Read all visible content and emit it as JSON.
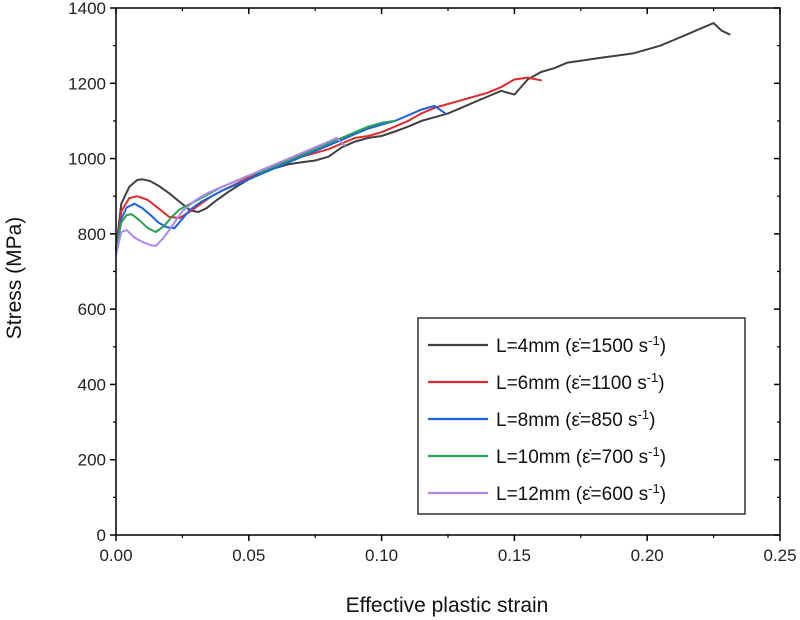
{
  "chart_data": {
    "type": "line",
    "title": "",
    "xlabel": "Effective plastic strain",
    "ylabel": "Stress (MPa)",
    "xlim": [
      0,
      0.25
    ],
    "ylim": [
      0,
      1400
    ],
    "grid": false,
    "legend_position": "bottom-right",
    "x_ticks": [
      0.0,
      0.05,
      0.1,
      0.15,
      0.2,
      0.25
    ],
    "x_tick_labels": [
      "0.00",
      "0.05",
      "0.10",
      "0.15",
      "0.20",
      "0.25"
    ],
    "y_ticks": [
      0,
      200,
      400,
      600,
      800,
      1000,
      1200,
      1400
    ],
    "y_tick_labels": [
      "0",
      "200",
      "400",
      "600",
      "800",
      "1000",
      "1200",
      "1400"
    ],
    "series": [
      {
        "name": "L=4mm",
        "legend_prefix": "L=4mm (",
        "legend_rate": "=1500 s",
        "color": "#404040",
        "x": [
          0.0,
          0.002,
          0.005,
          0.008,
          0.01,
          0.013,
          0.016,
          0.02,
          0.024,
          0.028,
          0.031,
          0.034,
          0.038,
          0.042,
          0.046,
          0.05,
          0.055,
          0.06,
          0.065,
          0.07,
          0.075,
          0.08,
          0.085,
          0.09,
          0.095,
          0.1,
          0.105,
          0.11,
          0.115,
          0.12,
          0.125,
          0.13,
          0.135,
          0.14,
          0.145,
          0.15,
          0.155,
          0.16,
          0.165,
          0.17,
          0.175,
          0.18,
          0.185,
          0.19,
          0.195,
          0.2,
          0.205,
          0.21,
          0.215,
          0.22,
          0.225,
          0.228,
          0.231
        ],
        "y": [
          760,
          880,
          925,
          943,
          945,
          940,
          928,
          908,
          885,
          862,
          858,
          868,
          890,
          910,
          928,
          945,
          965,
          975,
          985,
          990,
          995,
          1005,
          1030,
          1045,
          1055,
          1060,
          1072,
          1085,
          1100,
          1110,
          1120,
          1135,
          1150,
          1165,
          1180,
          1170,
          1210,
          1230,
          1240,
          1255,
          1260,
          1265,
          1270,
          1275,
          1280,
          1290,
          1300,
          1315,
          1330,
          1345,
          1360,
          1340,
          1330
        ]
      },
      {
        "name": "L=6mm",
        "legend_prefix": "L=6mm (",
        "legend_rate": "=1100 s",
        "color": "#e32a2a",
        "x": [
          0.0,
          0.002,
          0.005,
          0.008,
          0.012,
          0.016,
          0.02,
          0.024,
          0.028,
          0.032,
          0.036,
          0.04,
          0.045,
          0.05,
          0.055,
          0.06,
          0.065,
          0.07,
          0.075,
          0.08,
          0.085,
          0.09,
          0.095,
          0.1,
          0.105,
          0.11,
          0.115,
          0.12,
          0.125,
          0.13,
          0.135,
          0.14,
          0.145,
          0.15,
          0.155,
          0.16
        ],
        "y": [
          760,
          860,
          895,
          900,
          890,
          868,
          845,
          842,
          860,
          880,
          900,
          915,
          932,
          950,
          970,
          985,
          995,
          1005,
          1015,
          1025,
          1040,
          1055,
          1060,
          1070,
          1085,
          1100,
          1120,
          1135,
          1145,
          1155,
          1165,
          1175,
          1190,
          1210,
          1215,
          1208
        ]
      },
      {
        "name": "L=8mm",
        "legend_prefix": "L=8mm (",
        "legend_rate": "=850 s",
        "color": "#1a64dc",
        "x": [
          0.0,
          0.002,
          0.004,
          0.007,
          0.01,
          0.013,
          0.016,
          0.019,
          0.022,
          0.025,
          0.028,
          0.032,
          0.036,
          0.04,
          0.045,
          0.05,
          0.055,
          0.06,
          0.065,
          0.07,
          0.075,
          0.08,
          0.085,
          0.09,
          0.095,
          0.1,
          0.105,
          0.11,
          0.115,
          0.12,
          0.124
        ],
        "y": [
          760,
          840,
          870,
          880,
          868,
          850,
          830,
          818,
          815,
          840,
          865,
          885,
          900,
          915,
          930,
          945,
          960,
          975,
          990,
          1005,
          1020,
          1035,
          1050,
          1065,
          1080,
          1090,
          1100,
          1115,
          1130,
          1140,
          1120
        ]
      },
      {
        "name": "L=10mm",
        "legend_prefix": "L=10mm (",
        "legend_rate": "=700 s",
        "color": "#2aa057",
        "x": [
          0.0,
          0.002,
          0.004,
          0.006,
          0.009,
          0.012,
          0.015,
          0.018,
          0.021,
          0.024,
          0.028,
          0.032,
          0.036,
          0.04,
          0.045,
          0.05,
          0.055,
          0.06,
          0.065,
          0.07,
          0.075,
          0.08,
          0.085,
          0.09,
          0.095,
          0.1,
          0.105
        ],
        "y": [
          760,
          830,
          850,
          852,
          835,
          815,
          805,
          820,
          845,
          865,
          880,
          895,
          910,
          925,
          940,
          955,
          965,
          980,
          995,
          1010,
          1025,
          1040,
          1055,
          1070,
          1085,
          1095,
          1100
        ]
      },
      {
        "name": "L=12mm",
        "legend_prefix": "L=12mm (",
        "legend_rate": "=600 s",
        "color": "#b085f0",
        "x": [
          0.0,
          0.002,
          0.004,
          0.007,
          0.01,
          0.013,
          0.015,
          0.018,
          0.021,
          0.025,
          0.03,
          0.035,
          0.04,
          0.045,
          0.05,
          0.055,
          0.06,
          0.065,
          0.07,
          0.075,
          0.08,
          0.083,
          0.086
        ],
        "y": [
          745,
          805,
          810,
          790,
          778,
          770,
          768,
          790,
          820,
          860,
          890,
          910,
          925,
          940,
          955,
          970,
          985,
          1000,
          1015,
          1030,
          1045,
          1055,
          1035
        ]
      }
    ],
    "legend_rate_exponent": "-1",
    "legend_suffix": ")"
  }
}
